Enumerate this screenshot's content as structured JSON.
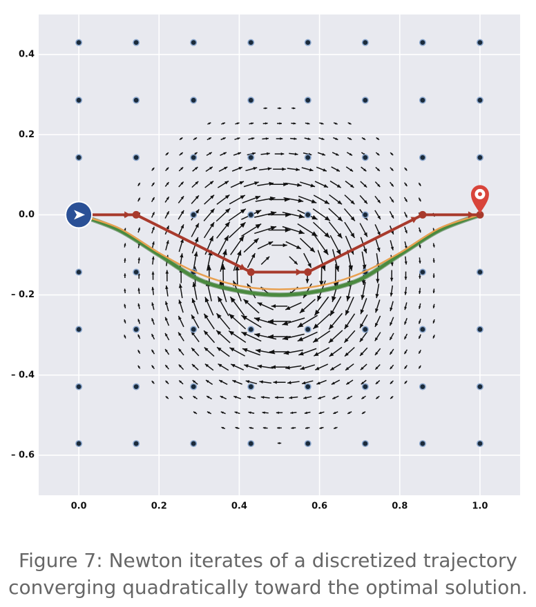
{
  "caption": "Figure 7: Newton iterates of a discretized trajectory converging quadratically toward the optimal solution.",
  "chart_data": {
    "type": "quiver",
    "title": "",
    "xlabel": "",
    "ylabel": "",
    "xlim": [
      -0.1,
      1.1
    ],
    "ylim": [
      -0.7,
      0.5
    ],
    "grid": true,
    "xticks": [
      0.0,
      0.2,
      0.4,
      0.6,
      0.8,
      1.0
    ],
    "xtick_labels": [
      "0.0",
      "0.2",
      "0.4",
      "0.6",
      "0.8",
      "1.0"
    ],
    "yticks": [
      0.4,
      0.2,
      0.0,
      -0.2,
      -0.4,
      -0.6
    ],
    "ytick_labels": [
      "0.4",
      "0.2",
      "0.0",
      "– 0.2",
      "– 0.4",
      "– 0.6"
    ],
    "vector_field": {
      "kind": "vortex",
      "center": [
        0.5,
        -0.15
      ],
      "x_range": [
        0.08,
        0.92
      ],
      "y_range": [
        -0.57,
        0.38
      ],
      "nx": 25,
      "ny": 26,
      "radius": 0.42
    },
    "collocation_grid": {
      "x": [
        0.0,
        0.143,
        0.286,
        0.429,
        0.571,
        0.714,
        0.857,
        1.0
      ],
      "y": [
        0.43,
        0.286,
        0.143,
        0.0,
        -0.143,
        -0.286,
        -0.429,
        -0.571
      ]
    },
    "series": [
      {
        "type": "polyline",
        "color": "#a83a2c",
        "x": [
          0.0,
          0.143,
          0.429,
          0.571,
          0.857,
          1.0
        ],
        "y": [
          0.0,
          0.0,
          -0.143,
          -0.143,
          0.0,
          0.0
        ]
      },
      {
        "type": "curve",
        "color": "#e8a050",
        "x": [
          0.0,
          0.1,
          0.2,
          0.3,
          0.4,
          0.5,
          0.6,
          0.7,
          0.8,
          0.9,
          1.0
        ],
        "y": [
          0.0,
          -0.033,
          -0.095,
          -0.147,
          -0.177,
          -0.186,
          -0.177,
          -0.147,
          -0.095,
          -0.033,
          0.0
        ]
      },
      {
        "type": "curve",
        "color": "#4a8a3e",
        "x": [
          0.0,
          0.1,
          0.2,
          0.3,
          0.4,
          0.5,
          0.6,
          0.7,
          0.8,
          0.9,
          1.0
        ],
        "y": [
          0.0,
          -0.038,
          -0.1,
          -0.162,
          -0.19,
          -0.2,
          -0.19,
          -0.162,
          -0.1,
          -0.038,
          0.0
        ]
      }
    ],
    "start_marker": {
      "x": 0.0,
      "y": 0.0,
      "icon": "arrow-navigation-icon",
      "color": "#2a5096"
    },
    "goal_marker": {
      "x": 1.0,
      "y": 0.0,
      "icon": "map-pin-icon",
      "color": "#d8443a"
    },
    "colors": {
      "background": "#e8e9ef",
      "grid": "#ffffff",
      "node_fill": "#1a2a3a",
      "node_ring": "#8aa6cc",
      "arrow": "#111111"
    }
  }
}
